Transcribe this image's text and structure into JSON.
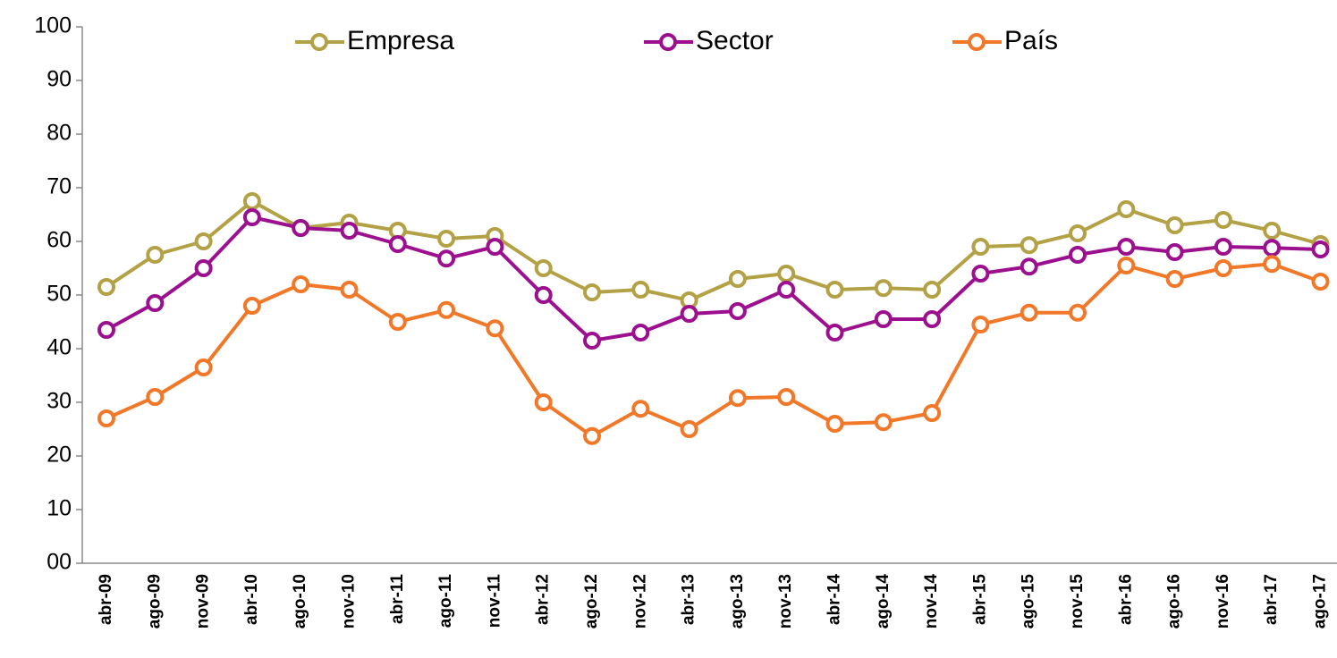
{
  "chart_data": {
    "type": "line",
    "categories": [
      "abr-09",
      "ago-09",
      "nov-09",
      "abr-10",
      "ago-10",
      "nov-10",
      "abr-11",
      "ago-11",
      "nov-11",
      "abr-12",
      "ago-12",
      "nov-12",
      "abr-13",
      "ago-13",
      "nov-13",
      "abr-14",
      "ago-14",
      "nov-14",
      "abr-15",
      "ago-15",
      "nov-15",
      "abr-16",
      "ago-16",
      "nov-16",
      "abr-17",
      "ago-17"
    ],
    "series": [
      {
        "name": "Empresa",
        "color": "#b3a146",
        "values": [
          51.5,
          57.5,
          60,
          67.5,
          62.5,
          63.5,
          62,
          60.5,
          61,
          55,
          50.5,
          51,
          49,
          53,
          54,
          51,
          51.3,
          51,
          59,
          59.3,
          61.5,
          66,
          63,
          64,
          62,
          59.5
        ]
      },
      {
        "name": "Sector",
        "color": "#9c0f8e",
        "values": [
          43.5,
          48.5,
          55,
          64.5,
          62.5,
          62,
          59.5,
          56.8,
          59,
          50,
          41.5,
          43,
          46.5,
          47,
          51,
          43,
          45.5,
          45.5,
          54,
          55.3,
          57.5,
          59,
          58,
          59,
          58.8,
          58.5
        ]
      },
      {
        "name": "País",
        "color": "#f07828",
        "values": [
          27,
          31,
          36.5,
          48,
          52,
          51,
          45,
          47.2,
          43.8,
          30,
          23.7,
          28.8,
          25,
          30.8,
          31,
          26,
          26.3,
          28,
          44.5,
          46.7,
          46.7,
          55.5,
          53,
          55,
          55.8,
          52.5
        ]
      }
    ],
    "ylim": [
      0,
      100
    ],
    "yticks": [
      {
        "value": 0,
        "label": "00"
      },
      10,
      20,
      30,
      40,
      50,
      60,
      70,
      80,
      90,
      100
    ]
  }
}
